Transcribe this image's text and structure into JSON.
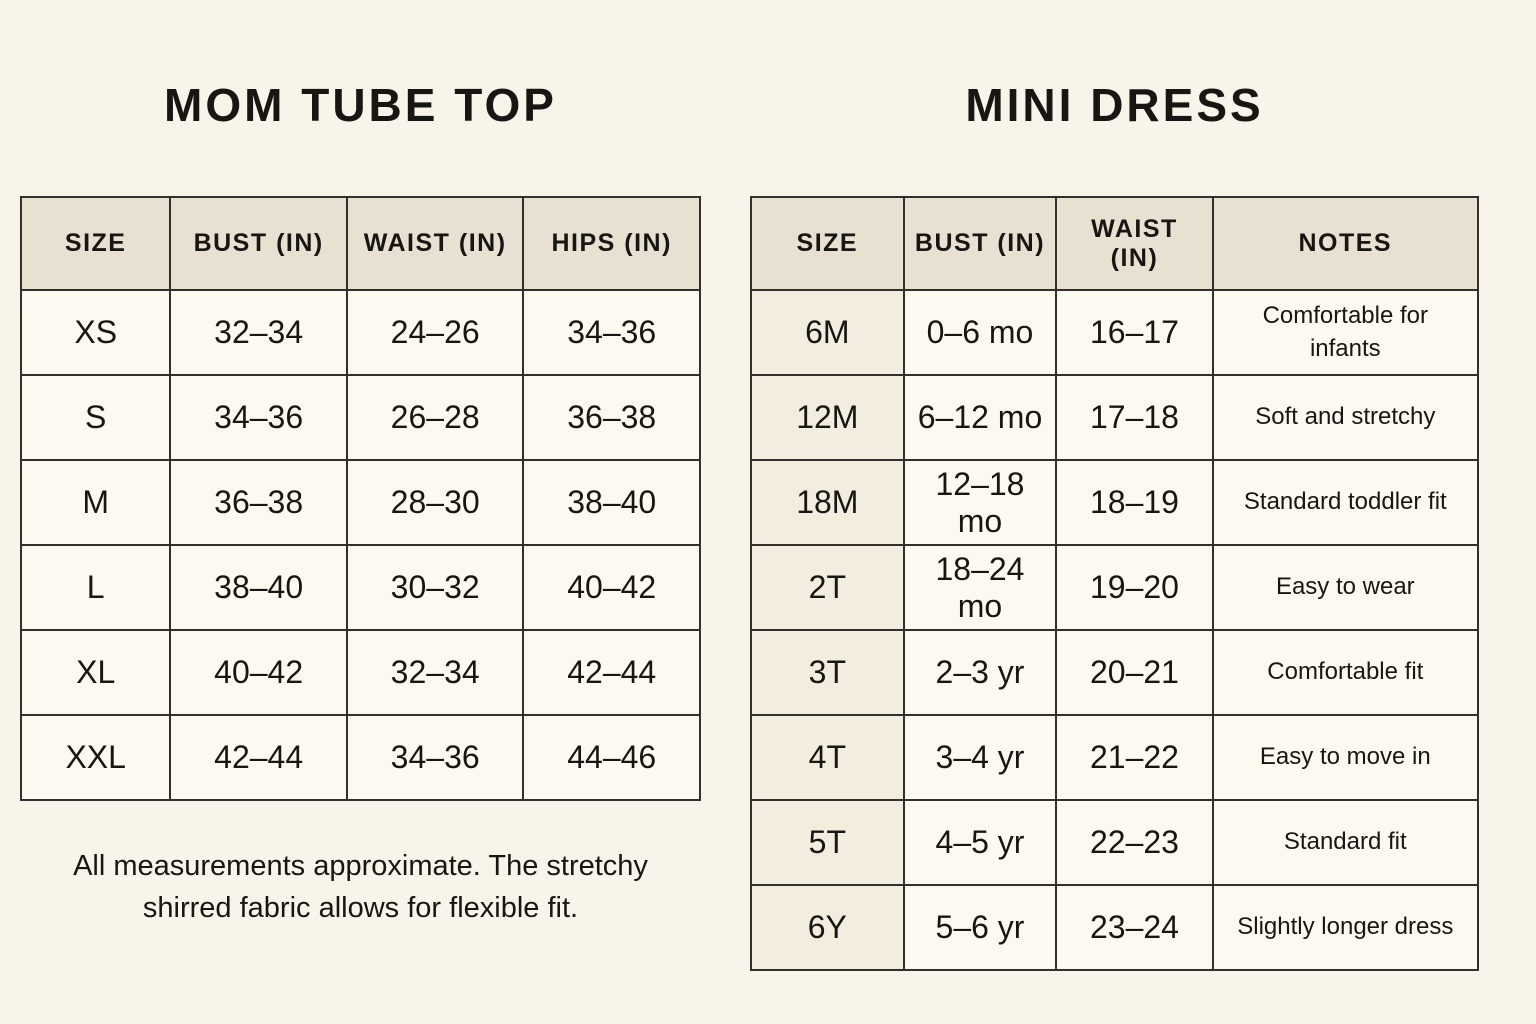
{
  "colors": {
    "background": "#f8f4e9",
    "header_cell": "#e8e0d0",
    "data_cell": "#fcf9f0",
    "size_column_tint": "#f3eddf",
    "border": "#32302b",
    "text": "#181613"
  },
  "left_chart": {
    "title": "MOM TUBE TOP",
    "columns": [
      "SIZE",
      "BUST (IN)",
      "WAIST (IN)",
      "HIPS (IN)"
    ],
    "rows": [
      [
        "XS",
        "32–34",
        "24–26",
        "34–36"
      ],
      [
        "S",
        "34–36",
        "26–28",
        "36–38"
      ],
      [
        "M",
        "36–38",
        "28–30",
        "38–40"
      ],
      [
        "L",
        "38–40",
        "30–32",
        "40–42"
      ],
      [
        "XL",
        "40–42",
        "32–34",
        "42–44"
      ],
      [
        "XXL",
        "42–44",
        "34–36",
        "44–46"
      ]
    ],
    "footnote": "All measurements approximate. The stretchy shirred fabric allows for flexible fit."
  },
  "right_chart": {
    "title": "MINI DRESS",
    "columns": [
      "SIZE",
      "BUST (IN)",
      "WAIST (IN)",
      "NOTES"
    ],
    "rows": [
      [
        "6M",
        "0–6 mo",
        "16–17",
        "Comfortable for infants"
      ],
      [
        "12M",
        "6–12 mo",
        "17–18",
        "Soft and stretchy"
      ],
      [
        "18M",
        "12–18 mo",
        "18–19",
        "Standard toddler fit"
      ],
      [
        "2T",
        "18–24 mo",
        "19–20",
        "Easy to wear"
      ],
      [
        "3T",
        "2–3 yr",
        "20–21",
        "Comfortable fit"
      ],
      [
        "4T",
        "3–4 yr",
        "21–22",
        "Easy to move in"
      ],
      [
        "5T",
        "4–5 yr",
        "22–23",
        "Standard fit"
      ],
      [
        "6Y",
        "5–6 yr",
        "23–24",
        "Slightly longer dress"
      ]
    ]
  }
}
